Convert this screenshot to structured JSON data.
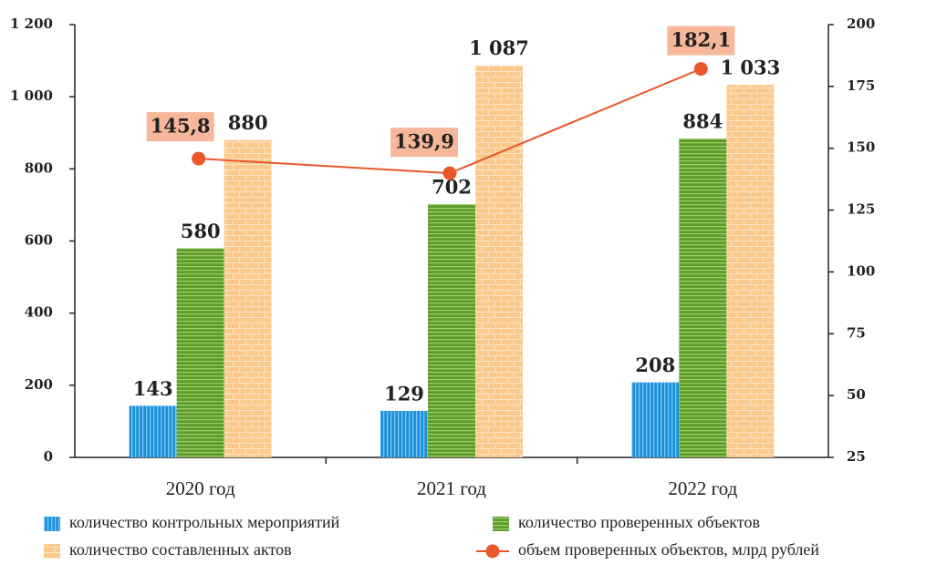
{
  "chart_data": {
    "type": "bar",
    "categories": [
      "2020 год",
      "2021 год",
      "2022 год"
    ],
    "ylim": [
      0,
      1200
    ],
    "yticks": [
      0,
      200,
      400,
      600,
      800,
      {
        "value": 1000,
        "label": "1 000"
      },
      {
        "value": 1200,
        "label": "1 200"
      }
    ],
    "y2lim": [
      25,
      200
    ],
    "y2ticks": [
      25,
      50,
      75,
      100,
      125,
      150,
      175,
      200
    ],
    "series": [
      {
        "name": "количество контрольных мероприятий",
        "color": "#1b8fd8",
        "values": [
          143,
          129,
          208
        ]
      },
      {
        "name": "количество проверенных объектов",
        "color": "#5b9b2c",
        "values": [
          580,
          702,
          884
        ]
      },
      {
        "name": "количество составленных актов",
        "color": "#fcc98c",
        "values": [
          880,
          1087,
          1033
        ],
        "value_labels": [
          "880",
          "1 087",
          "1 033"
        ]
      },
      {
        "name": "объем проверенных объектов, млрд рублей",
        "color": "#e9572b",
        "type": "line",
        "axis": "y2",
        "values": [
          145.8,
          139.9,
          182.1
        ],
        "value_labels": [
          "145,8",
          "139,9",
          "182,1"
        ]
      }
    ]
  }
}
